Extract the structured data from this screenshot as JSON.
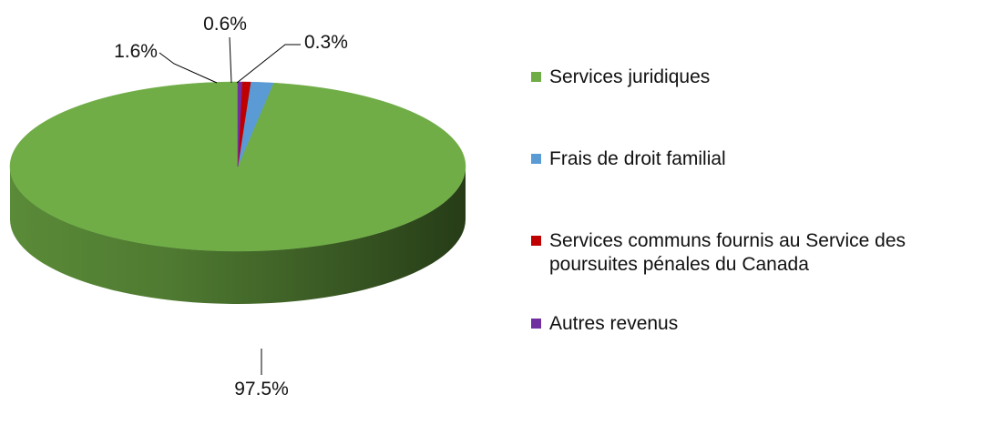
{
  "chart_data": {
    "type": "pie",
    "style": "3d",
    "categories": [
      "Services juridiques",
      "Frais de droit familial",
      "Services communs fournis au Service des poursuites pénales du Canada",
      "Autres revenus"
    ],
    "values": [
      97.5,
      1.6,
      0.6,
      0.3
    ],
    "labels": [
      "97.5%",
      "1.6%",
      "0.6%",
      "0.3%"
    ],
    "colors": [
      "#70ad47",
      "#5b9bd5",
      "#c00000",
      "#7030a0"
    ],
    "legend_position": "right"
  }
}
